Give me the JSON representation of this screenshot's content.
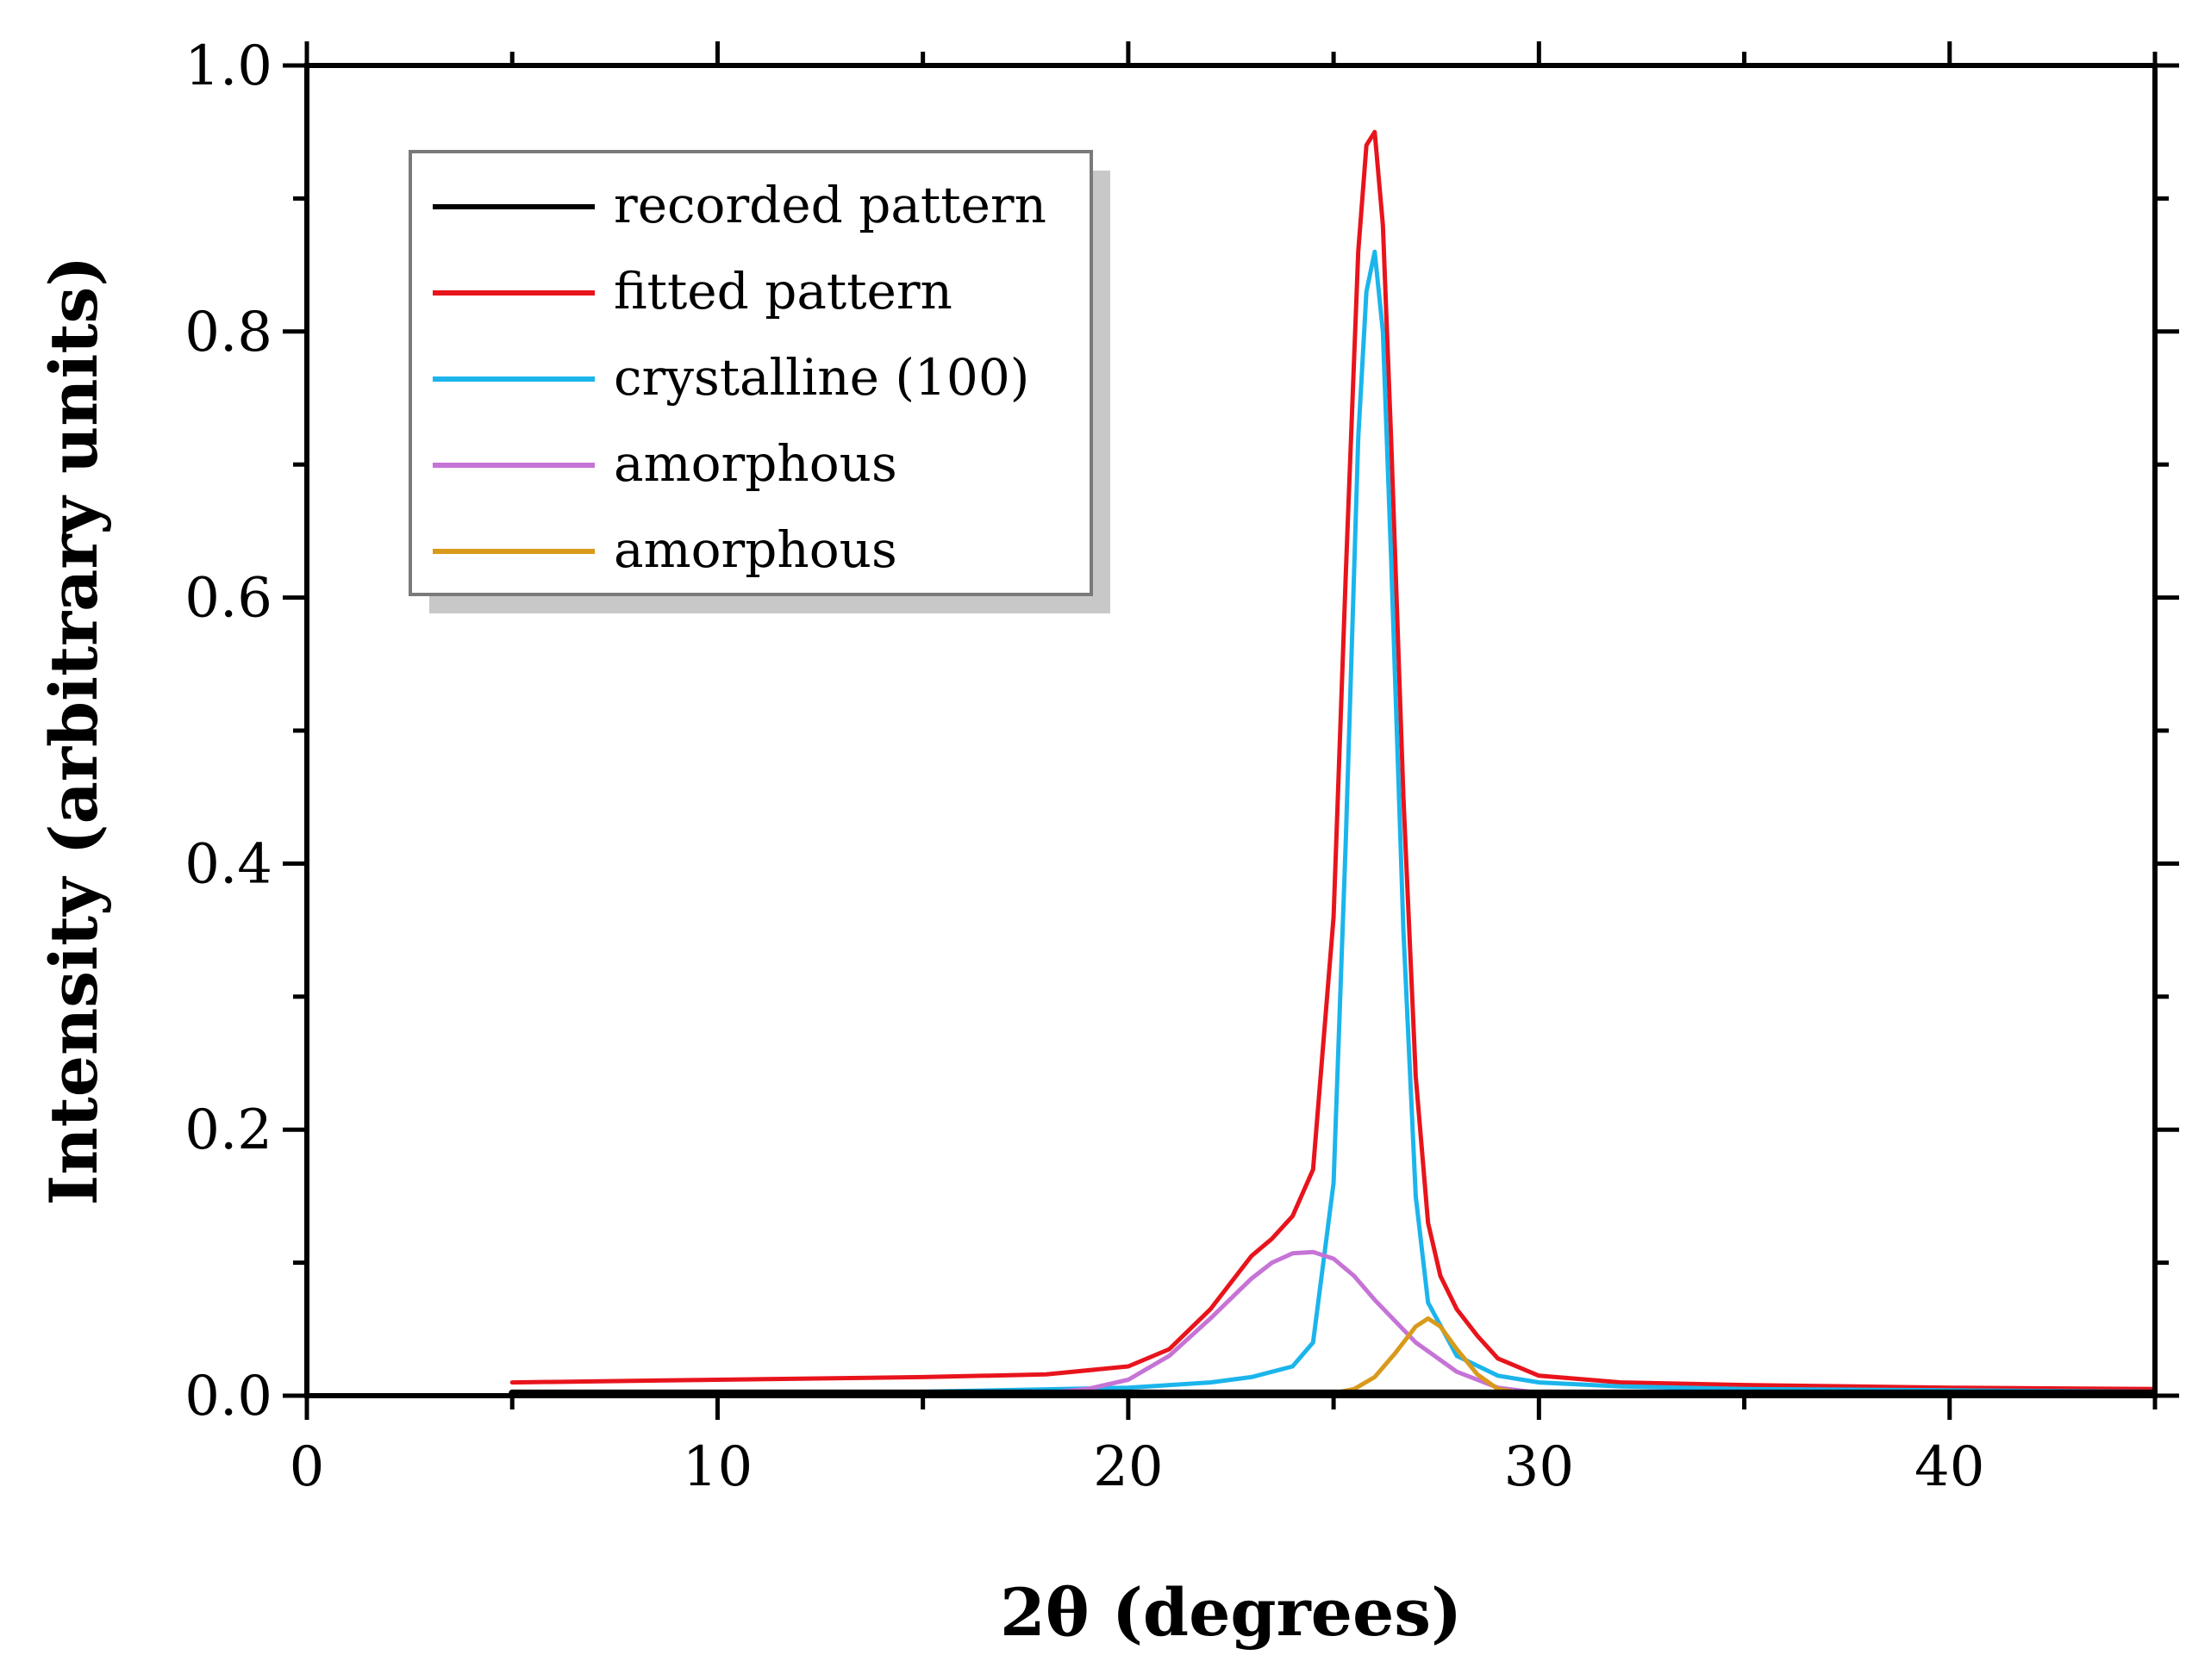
{
  "chart_data": {
    "type": "line",
    "title": "",
    "xlabel": "2θ (degrees)",
    "ylabel": "Intensity (arbitrary units)",
    "xlim": [
      0,
      45
    ],
    "ylim": [
      0,
      1.0
    ],
    "xticks": [
      0,
      10,
      20,
      30,
      40
    ],
    "xtick_labels": [
      "0",
      "10",
      "20",
      "30",
      "40"
    ],
    "yticks": [
      0.0,
      0.2,
      0.4,
      0.6,
      0.8,
      1.0
    ],
    "ytick_labels": [
      "0.0",
      "0.2",
      "0.4",
      "0.6",
      "0.8",
      "1.0"
    ],
    "grid": false,
    "legend_position": "top-left",
    "series": [
      {
        "name": "recorded pattern",
        "color": "#000000",
        "x": [
          5,
          10,
          15,
          20,
          25,
          30,
          35,
          40,
          45
        ],
        "y": [
          0.002,
          0.002,
          0.002,
          0.002,
          0.002,
          0.002,
          0.002,
          0.002,
          0.002
        ]
      },
      {
        "name": "fitted pattern",
        "color": "#e8141c",
        "x": [
          5,
          10,
          15,
          18,
          20,
          21,
          22,
          23,
          23.5,
          24,
          24.5,
          25,
          25.3,
          25.6,
          25.8,
          26.0,
          26.2,
          26.4,
          26.7,
          27.0,
          27.3,
          27.6,
          28,
          28.5,
          29,
          30,
          32,
          35,
          40,
          45
        ],
        "y": [
          0.01,
          0.012,
          0.014,
          0.016,
          0.022,
          0.035,
          0.065,
          0.105,
          0.118,
          0.135,
          0.17,
          0.36,
          0.62,
          0.86,
          0.94,
          0.95,
          0.88,
          0.72,
          0.45,
          0.24,
          0.13,
          0.09,
          0.065,
          0.045,
          0.028,
          0.015,
          0.01,
          0.008,
          0.006,
          0.005
        ]
      },
      {
        "name": "crystalline (100)",
        "color": "#1bb5ec",
        "x": [
          5,
          15,
          20,
          22,
          23,
          24,
          24.5,
          25,
          25.3,
          25.6,
          25.8,
          26.0,
          26.2,
          26.4,
          26.7,
          27.0,
          27.3,
          28,
          29,
          30,
          32,
          35,
          40,
          45
        ],
        "y": [
          0.002,
          0.003,
          0.006,
          0.01,
          0.014,
          0.022,
          0.04,
          0.16,
          0.42,
          0.72,
          0.83,
          0.86,
          0.8,
          0.63,
          0.35,
          0.15,
          0.07,
          0.03,
          0.015,
          0.01,
          0.007,
          0.005,
          0.004,
          0.003
        ]
      },
      {
        "name": "amorphous",
        "color": "#c673d6",
        "x": [
          15,
          18,
          19,
          20,
          21,
          22,
          23,
          23.5,
          24,
          24.5,
          25,
          25.5,
          26,
          27,
          28,
          29,
          30,
          31,
          33
        ],
        "y": [
          0.001,
          0.002,
          0.005,
          0.012,
          0.03,
          0.058,
          0.088,
          0.1,
          0.107,
          0.108,
          0.103,
          0.09,
          0.072,
          0.04,
          0.018,
          0.006,
          0.002,
          0.001,
          0.0
        ]
      },
      {
        "name": "amorphous",
        "color": "#d99a1c",
        "x": [
          24,
          25,
          25.5,
          26,
          26.5,
          27,
          27.3,
          27.6,
          28,
          28.5,
          29,
          30
        ],
        "y": [
          0.0,
          0.002,
          0.005,
          0.014,
          0.032,
          0.052,
          0.058,
          0.052,
          0.035,
          0.016,
          0.005,
          0.0
        ]
      }
    ]
  }
}
